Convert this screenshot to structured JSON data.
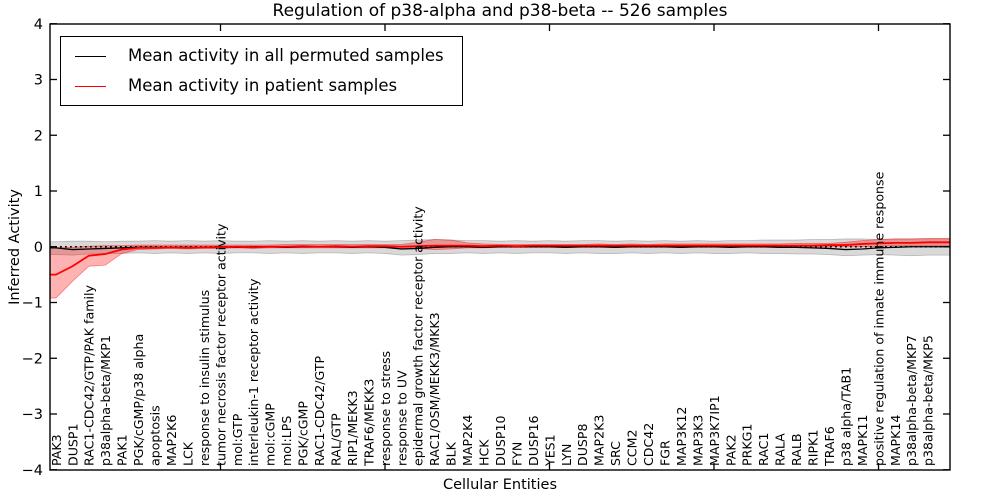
{
  "figure": {
    "title": "Regulation of p38-alpha and p38-beta -- 526 samples",
    "xlabel": "Cellular Entities",
    "ylabel": "Inferred Activity"
  },
  "chart_data": {
    "type": "line",
    "title": "Regulation of p38-alpha and p38-beta -- 526 samples",
    "xlabel": "Cellular Entities",
    "ylabel": "Inferred Activity",
    "ylim": [
      -4,
      4
    ],
    "yticks": [
      -4,
      -3,
      -2,
      -1,
      0,
      1,
      2,
      3,
      4
    ],
    "grid": false,
    "legend_position": "upper left",
    "zero_line": {
      "show": true,
      "style": "dotted",
      "color": "#000000"
    },
    "categories": [
      "PAK3",
      "DUSP1",
      "RAC1-CDC42/GTP/PAK family",
      "p38alpha-beta/MKP1",
      "PAK1",
      "PGK/cGMP/p38 alpha",
      "apoptosis",
      "MAP2K6",
      "LCK",
      "response to insulin stimulus",
      "tumor necrosis factor receptor activity",
      "mol:GTP",
      "interleukin-1 receptor activity",
      "mol:cGMP",
      "mol:LPS",
      "PGK/cGMP",
      "RAC1-CDC42/GTP",
      "RAL/GTP",
      "RIP1/MEKK3",
      "TRAF6/MEKK3",
      "response to stress",
      "response to UV",
      "epidermal growth factor receptor activity",
      "RAC1/OSM/MEKK3/MKK3",
      "BLK",
      "MAP2K4",
      "HCK",
      "DUSP10",
      "FYN",
      "DUSP16",
      "YES1",
      "LYN",
      "DUSP8",
      "MAP2K3",
      "SRC",
      "CCM2",
      "CDC42",
      "FGR",
      "MAP3K12",
      "MAP3K3",
      "MAP3K7IP1",
      "PAK2",
      "PRKG1",
      "RAC1",
      "RALA",
      "RALB",
      "RIPK1",
      "TRAF6",
      "p38 alpha/TAB1",
      "MAPK11",
      "positive regulation of innate immune response",
      "MAPK14",
      "p38alpha-beta/MKP7",
      "p38alpha-beta/MKP5"
    ],
    "series": [
      {
        "name": "Mean activity in all permuted samples",
        "color": "#000000",
        "values": [
          -0.02,
          -0.05,
          -0.04,
          -0.03,
          -0.02,
          -0.01,
          -0.01,
          -0.01,
          -0.01,
          -0.01,
          0,
          -0.01,
          0,
          0,
          -0.01,
          0,
          0,
          0,
          -0.01,
          0,
          -0.01,
          -0.04,
          -0.03,
          -0.01,
          0,
          0,
          -0.01,
          0,
          0,
          0,
          0,
          -0.01,
          0,
          0,
          -0.01,
          0,
          0,
          0,
          -0.01,
          0,
          0,
          -0.01,
          0,
          0,
          -0.01,
          -0.01,
          -0.02,
          -0.03,
          -0.05,
          -0.04,
          -0.02,
          -0.01,
          0,
          0
        ]
      },
      {
        "name": "Mean activity in patient samples",
        "color": "#ff0000",
        "values": [
          -0.5,
          -0.35,
          -0.16,
          -0.13,
          -0.05,
          -0.02,
          -0.02,
          -0.01,
          -0.02,
          -0.01,
          -0.01,
          0,
          -0.01,
          0,
          0,
          0.01,
          0,
          0.01,
          0,
          0.01,
          0.01,
          0,
          0.01,
          0.02,
          0.02,
          0.02,
          0.01,
          0.02,
          0.01,
          0.02,
          0.02,
          0.02,
          0.02,
          0.02,
          0.02,
          0.02,
          0.02,
          0.02,
          0.02,
          0.02,
          0.02,
          0.02,
          0.02,
          0.02,
          0.02,
          0.02,
          0.02,
          0.03,
          0.03,
          0.05,
          0.06,
          0.07,
          0.07,
          0.08
        ]
      }
    ],
    "bands": [
      {
        "name": "permuted samples range",
        "fill": "rgba(120,120,120,0.28)",
        "edge": "rgba(120,120,120,0.45)",
        "low": [
          -0.14,
          -0.15,
          -0.13,
          -0.12,
          -0.12,
          -0.11,
          -0.12,
          -0.11,
          -0.12,
          -0.11,
          -0.12,
          -0.11,
          -0.11,
          -0.12,
          -0.11,
          -0.12,
          -0.11,
          -0.11,
          -0.12,
          -0.11,
          -0.12,
          -0.15,
          -0.14,
          -0.12,
          -0.12,
          -0.11,
          -0.12,
          -0.11,
          -0.12,
          -0.11,
          -0.11,
          -0.12,
          -0.11,
          -0.12,
          -0.12,
          -0.11,
          -0.12,
          -0.11,
          -0.12,
          -0.11,
          -0.12,
          -0.12,
          -0.11,
          -0.12,
          -0.12,
          -0.13,
          -0.13,
          -0.14,
          -0.16,
          -0.15,
          -0.14,
          -0.15,
          -0.16,
          -0.15
        ],
        "high": [
          0.09,
          0.1,
          0.1,
          0.09,
          0.1,
          0.1,
          0.11,
          0.1,
          0.11,
          0.1,
          0.11,
          0.1,
          0.1,
          0.11,
          0.1,
          0.11,
          0.1,
          0.11,
          0.1,
          0.11,
          0.1,
          0.11,
          0.12,
          0.13,
          0.12,
          0.11,
          0.11,
          0.1,
          0.11,
          0.1,
          0.11,
          0.1,
          0.11,
          0.11,
          0.1,
          0.11,
          0.1,
          0.11,
          0.1,
          0.11,
          0.1,
          0.11,
          0.11,
          0.12,
          0.12,
          0.12,
          0.13,
          0.13,
          0.14,
          0.14,
          0.13,
          0.14,
          0.14,
          0.14
        ]
      },
      {
        "name": "patient samples range",
        "fill": "rgba(255,0,0,0.30)",
        "edge": "rgba(255,0,0,0.45)",
        "low": [
          -0.92,
          -0.62,
          -0.35,
          -0.33,
          -0.12,
          -0.05,
          -0.04,
          -0.03,
          -0.04,
          -0.03,
          -0.03,
          -0.02,
          -0.03,
          -0.02,
          -0.02,
          -0.02,
          -0.02,
          -0.02,
          -0.02,
          -0.02,
          -0.02,
          -0.03,
          -0.03,
          -0.05,
          -0.04,
          -0.02,
          -0.02,
          -0.01,
          -0.01,
          -0.01,
          -0.01,
          -0.01,
          -0.01,
          -0.01,
          -0.01,
          -0.01,
          -0.01,
          -0.01,
          -0.01,
          -0.01,
          -0.01,
          -0.01,
          -0.01,
          -0.01,
          -0.01,
          -0.01,
          0,
          0,
          0,
          0,
          0.01,
          0.02,
          0.02,
          0.02
        ],
        "high": [
          -0.02,
          -0.01,
          0.01,
          0.02,
          0.02,
          0.03,
          0.03,
          0.03,
          0.03,
          0.03,
          0.03,
          0.03,
          0.03,
          0.03,
          0.04,
          0.04,
          0.04,
          0.04,
          0.04,
          0.04,
          0.04,
          0.04,
          0.08,
          0.13,
          0.12,
          0.07,
          0.05,
          0.04,
          0.04,
          0.04,
          0.04,
          0.04,
          0.04,
          0.05,
          0.04,
          0.05,
          0.04,
          0.05,
          0.05,
          0.05,
          0.05,
          0.05,
          0.05,
          0.05,
          0.05,
          0.06,
          0.06,
          0.06,
          0.08,
          0.11,
          0.13,
          0.14,
          0.14,
          0.15
        ]
      }
    ]
  }
}
